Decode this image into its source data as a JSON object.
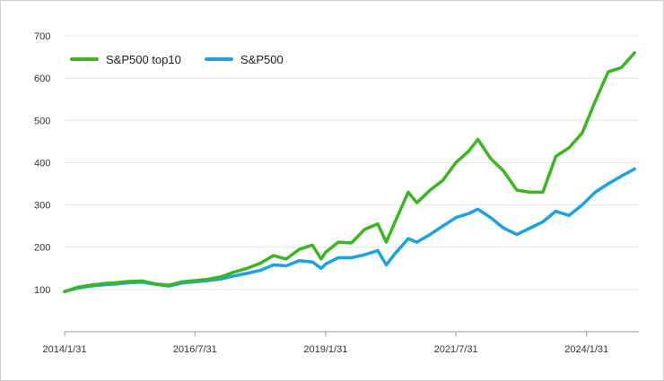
{
  "chart_data": {
    "type": "line",
    "title": "",
    "xlabel": "",
    "ylabel": "",
    "ylim": [
      0,
      700
    ],
    "y_ticks": [
      100,
      200,
      300,
      400,
      500,
      600,
      700
    ],
    "x_ticks": [
      "2014/1/31",
      "2016/7/31",
      "2019/1/31",
      "2021/7/31",
      "2024/1/31"
    ],
    "x_range": [
      "2014-01-31",
      "2025-01-31"
    ],
    "grid": "horizontal",
    "legend_position": "top-left",
    "series": [
      {
        "name": "S&P500 top10",
        "color": "#3cb521",
        "x": [
          "2014-01-31",
          "2014-04-30",
          "2014-07-31",
          "2014-10-31",
          "2015-01-31",
          "2015-04-30",
          "2015-07-31",
          "2015-10-31",
          "2016-01-31",
          "2016-04-30",
          "2016-07-31",
          "2016-10-31",
          "2017-01-31",
          "2017-04-30",
          "2017-07-31",
          "2017-10-31",
          "2018-01-31",
          "2018-04-30",
          "2018-07-31",
          "2018-10-31",
          "2018-12-31",
          "2019-01-31",
          "2019-04-30",
          "2019-07-31",
          "2019-10-31",
          "2020-01-31",
          "2020-03-31",
          "2020-05-31",
          "2020-08-31",
          "2020-10-31",
          "2021-01-31",
          "2021-04-30",
          "2021-07-31",
          "2021-10-31",
          "2021-12-31",
          "2022-03-31",
          "2022-06-30",
          "2022-09-30",
          "2022-12-31",
          "2023-03-31",
          "2023-06-30",
          "2023-09-30",
          "2023-12-31",
          "2024-03-31",
          "2024-06-30",
          "2024-09-30",
          "2024-12-31"
        ],
        "values": [
          95,
          105,
          110,
          114,
          116,
          119,
          120,
          113,
          110,
          118,
          121,
          124,
          130,
          141,
          150,
          162,
          180,
          172,
          195,
          205,
          172,
          188,
          212,
          210,
          242,
          255,
          212,
          260,
          330,
          305,
          335,
          358,
          400,
          428,
          455,
          410,
          380,
          335,
          330,
          330,
          415,
          435,
          470,
          545,
          615,
          625,
          660
        ]
      },
      {
        "name": "S&P500",
        "color": "#1aa3e0",
        "x": [
          "2014-01-31",
          "2014-04-30",
          "2014-07-31",
          "2014-10-31",
          "2015-01-31",
          "2015-04-30",
          "2015-07-31",
          "2015-10-31",
          "2016-01-31",
          "2016-04-30",
          "2016-07-31",
          "2016-10-31",
          "2017-01-31",
          "2017-04-30",
          "2017-07-31",
          "2017-10-31",
          "2018-01-31",
          "2018-04-30",
          "2018-07-31",
          "2018-10-31",
          "2018-12-31",
          "2019-01-31",
          "2019-04-30",
          "2019-07-31",
          "2019-10-31",
          "2020-01-31",
          "2020-03-31",
          "2020-05-31",
          "2020-08-31",
          "2020-10-31",
          "2021-01-31",
          "2021-04-30",
          "2021-07-31",
          "2021-10-31",
          "2021-12-31",
          "2022-03-31",
          "2022-06-30",
          "2022-09-30",
          "2022-12-31",
          "2023-03-31",
          "2023-06-30",
          "2023-09-30",
          "2023-12-31",
          "2024-03-31",
          "2024-06-30",
          "2024-09-30",
          "2024-12-31"
        ],
        "values": [
          95,
          103,
          108,
          111,
          113,
          116,
          117,
          112,
          108,
          115,
          118,
          121,
          125,
          132,
          138,
          145,
          158,
          156,
          168,
          165,
          150,
          160,
          175,
          175,
          182,
          192,
          158,
          185,
          220,
          212,
          230,
          250,
          270,
          280,
          290,
          270,
          245,
          230,
          245,
          260,
          285,
          275,
          300,
          330,
          350,
          368,
          385
        ]
      }
    ]
  }
}
